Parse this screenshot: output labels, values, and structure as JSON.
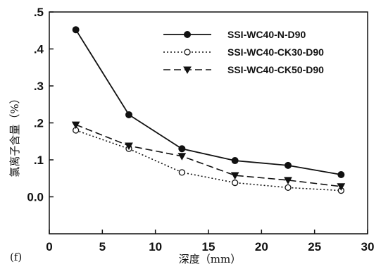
{
  "chart_data": {
    "type": "line",
    "xlabel": "深度（mm）",
    "ylabel": "氯离子含量（%）",
    "panel_label": "(f)",
    "xlim": [
      0,
      30
    ],
    "ylim": [
      -0.1,
      0.5
    ],
    "xticks": [
      0,
      5,
      10,
      15,
      20,
      25,
      30
    ],
    "xtick_labels": [
      "0",
      "5",
      "10",
      "15",
      "20",
      "25",
      "30"
    ],
    "yticks": [
      0.0,
      0.1,
      0.2,
      0.3,
      0.4,
      0.5
    ],
    "ytick_labels": [
      "0.0",
      ".1",
      ".2",
      ".3",
      ".4",
      ".5"
    ],
    "grid": false,
    "legend_position": "top-right",
    "x": [
      2.5,
      7.5,
      12.5,
      17.5,
      22.5,
      27.5
    ],
    "series": [
      {
        "name": "SSI-WC40-N-D90",
        "values": [
          0.452,
          0.222,
          0.13,
          0.098,
          0.085,
          0.06
        ],
        "line_style": "solid",
        "marker": "filled-circle",
        "color": "#111111"
      },
      {
        "name": "SSI-WC40-CK30-D90",
        "values": [
          0.18,
          0.13,
          0.066,
          0.038,
          0.025,
          0.017
        ],
        "line_style": "dotted",
        "marker": "open-circle",
        "color": "#111111"
      },
      {
        "name": "SSI-WC40-CK50-D90",
        "values": [
          0.195,
          0.138,
          0.11,
          0.058,
          0.045,
          0.028
        ],
        "line_style": "dashed",
        "marker": "filled-triangle-down",
        "color": "#111111"
      }
    ]
  }
}
